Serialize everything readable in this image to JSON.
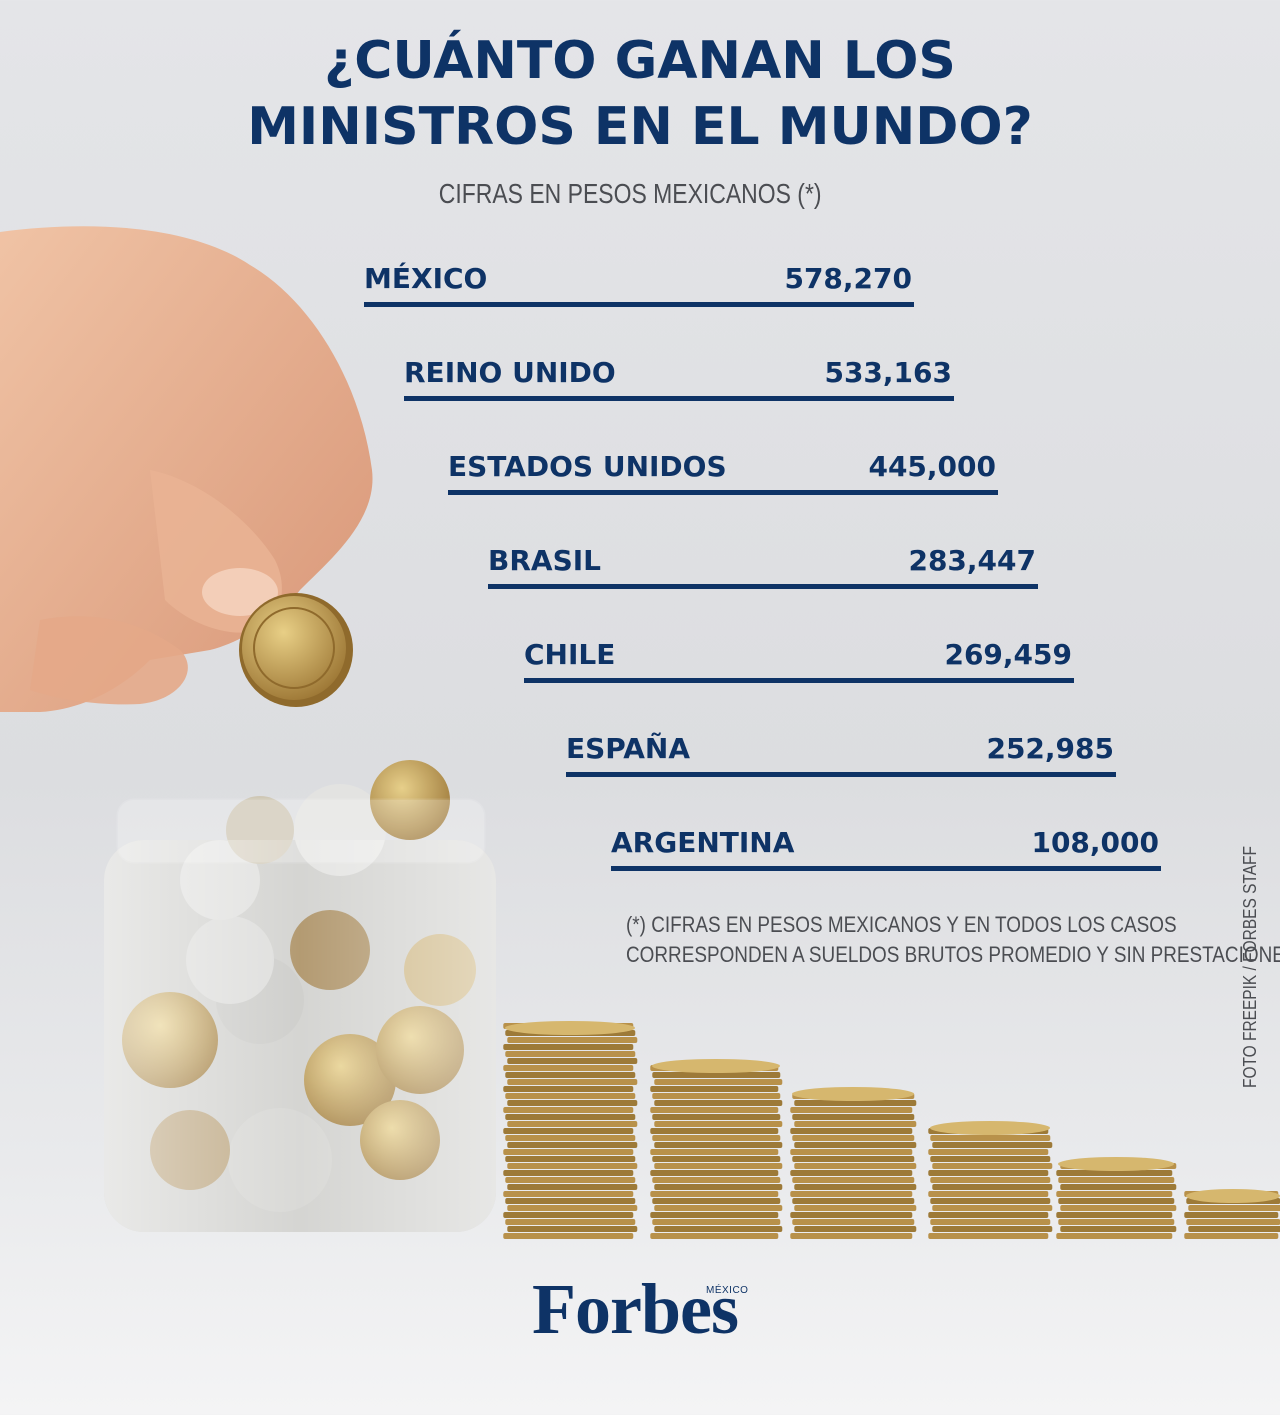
{
  "title": {
    "line1": "¿CUÁNTO GANAN LOS",
    "line2": "MINISTROS EN EL MUNDO?"
  },
  "subtitle": "CIFRAS EN PESOS MEXICANOS (*)",
  "chart_data": {
    "type": "table",
    "title": "¿CUÁNTO GANAN LOS MINISTROS EN EL MUNDO?",
    "subtitle": "CIFRAS EN PESOS MEXICANOS (*)",
    "categories": [
      "MÉXICO",
      "REINO UNIDO",
      "ESTADOS UNIDOS",
      "BRASIL",
      "CHILE",
      "ESPAÑA",
      "ARGENTINA"
    ],
    "values": [
      578270,
      533163,
      445000,
      283447,
      269459,
      252985,
      108000
    ],
    "value_labels": [
      "578,270",
      "533,163",
      "445,000",
      "283,447",
      "269,459",
      "252,985",
      "108,000"
    ]
  },
  "footnote": {
    "line1": "(*) CIFRAS EN PESOS MEXICANOS Y EN TODOS LOS CASOS",
    "line2": "CORRESPONDEN A SUELDOS BRUTOS PROMEDIO Y SIN PRESTACIONES"
  },
  "credit": "FOTO FREEPIK / FORBES STAFF",
  "logo": {
    "name": "Forbes",
    "edition": "MÉXICO"
  },
  "colors": {
    "primary": "#0e3366",
    "text_gray": "#4b4d52",
    "gold": "#b89448"
  }
}
